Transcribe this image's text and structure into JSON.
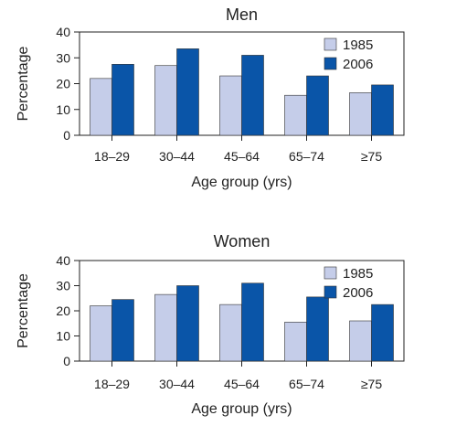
{
  "chart_data": [
    {
      "type": "bar",
      "title": "Men",
      "xlabel": "Age group (yrs)",
      "ylabel": "Percentage",
      "ylim": [
        0,
        40
      ],
      "yticks": [
        0,
        10,
        20,
        30,
        40
      ],
      "grid": false,
      "legend": "top-right",
      "categories": [
        "18–29",
        "30–44",
        "45–64",
        "65–74",
        "≥75"
      ],
      "series": [
        {
          "name": "1985",
          "color": "#c5cde9",
          "values": [
            22,
            27,
            23,
            15.5,
            16.5
          ]
        },
        {
          "name": "2006",
          "color": "#0a55a8",
          "values": [
            27.5,
            33.5,
            31,
            23,
            19.5
          ]
        }
      ]
    },
    {
      "type": "bar",
      "title": "Women",
      "xlabel": "Age group (yrs)",
      "ylabel": "Percentage",
      "ylim": [
        0,
        40
      ],
      "yticks": [
        0,
        10,
        20,
        30,
        40
      ],
      "grid": false,
      "legend": "top-right",
      "categories": [
        "18–29",
        "30–44",
        "45–64",
        "65–74",
        "≥75"
      ],
      "series": [
        {
          "name": "1985",
          "color": "#c5cde9",
          "values": [
            22,
            26.5,
            22.5,
            15.5,
            16
          ]
        },
        {
          "name": "2006",
          "color": "#0a55a8",
          "values": [
            24.5,
            30,
            31,
            25.5,
            22.5
          ]
        }
      ]
    }
  ]
}
